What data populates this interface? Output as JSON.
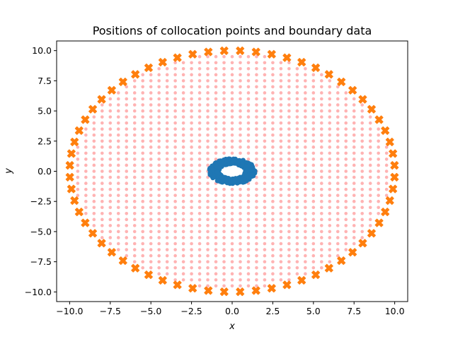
{
  "chart_data": {
    "type": "scatter",
    "title": "Positions of collocation points and boundary data",
    "xlabel": "x",
    "ylabel": "y",
    "xlim": [
      -10.8,
      10.8
    ],
    "ylim": [
      -10.8,
      10.8
    ],
    "xticks": [
      -10.0,
      -7.5,
      -5.0,
      -2.5,
      0.0,
      2.5,
      5.0,
      7.5,
      10.0
    ],
    "yticks": [
      -10.0,
      -7.5,
      -5.0,
      -2.5,
      0.0,
      2.5,
      5.0,
      7.5,
      10.0
    ],
    "xtick_labels": [
      "−10.0",
      "−7.5",
      "−5.0",
      "−2.5",
      "0.0",
      "2.5",
      "5.0",
      "7.5",
      "10.0"
    ],
    "ytick_labels": [
      "−10.0",
      "−7.5",
      "−5.0",
      "−2.5",
      "0.0",
      "2.5",
      "5.0",
      "7.5",
      "10.0"
    ],
    "grid": false,
    "series": [
      {
        "marker": "circle",
        "color": "#ffb3b3",
        "description_of_points": "regular grid points with spacing 0.5 inside the disk of radius 10",
        "grid_spacing": 0.5,
        "outer_radius": 10.0
      },
      {
        "marker": "circle",
        "color": "#1f77b4",
        "description_of_points": "dense points on an annulus around the origin",
        "inner_radius": 0.6,
        "outer_radius": 1.05,
        "count": 400
      },
      {
        "marker": "X",
        "color": "#ff7f0e",
        "description_of_points": "boundary points on circle of radius 10",
        "radius": 10.0,
        "count": 64
      }
    ]
  }
}
